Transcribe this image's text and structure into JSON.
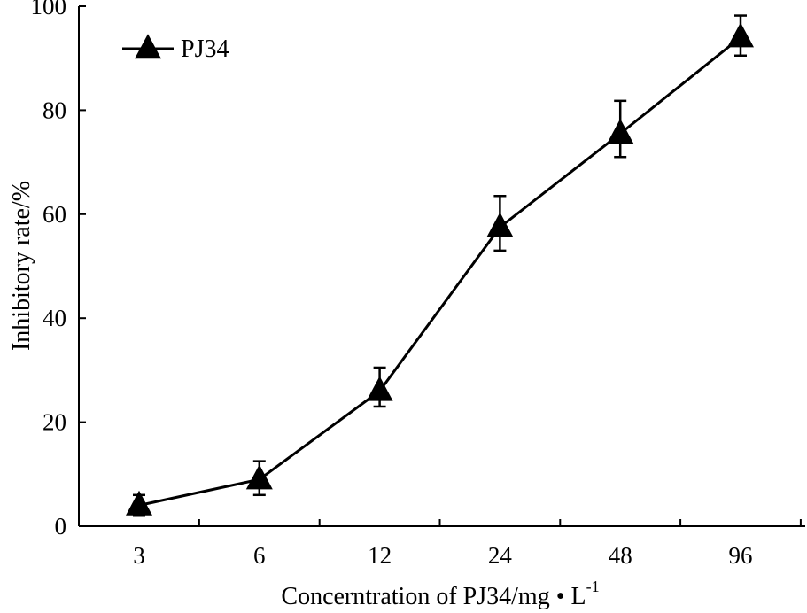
{
  "chart_data": {
    "type": "line",
    "title": "",
    "xlabel": "Concerntration of PJ34/mg • L",
    "xlabel_superscript": "-1",
    "ylabel": "Inhibitory rate/%",
    "categories": [
      "3",
      "6",
      "12",
      "24",
      "48",
      "96"
    ],
    "ylim": [
      0,
      100
    ],
    "yticks": [
      0,
      20,
      40,
      60,
      80,
      100
    ],
    "grid": false,
    "legend_position": "top-left",
    "series": [
      {
        "name": "PJ34",
        "marker": "triangle",
        "color": "#000000",
        "values": [
          4,
          9,
          26,
          57.5,
          75.5,
          94
        ],
        "error_upper": [
          6,
          12.5,
          30.5,
          63.5,
          81.8,
          98.2
        ],
        "error_lower": [
          2,
          6,
          23,
          53,
          71,
          90.5
        ]
      }
    ]
  }
}
